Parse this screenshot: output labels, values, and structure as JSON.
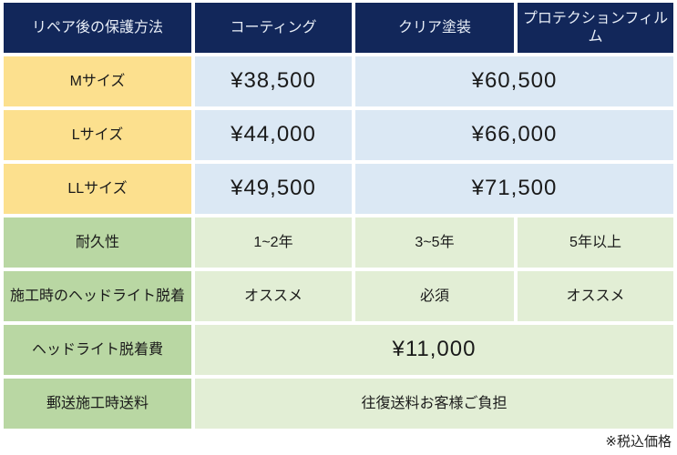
{
  "table": {
    "header": [
      "リペア後の保護方法",
      "コーティング",
      "クリア塗装",
      "プロテクションフィルム"
    ],
    "size_rows": [
      {
        "label": "Mサイズ",
        "coating_price": "¥38,500",
        "clear_film_price": "¥60,500"
      },
      {
        "label": "Lサイズ",
        "coating_price": "¥44,000",
        "clear_film_price": "¥66,000"
      },
      {
        "label": "LLサイズ",
        "coating_price": "¥49,500",
        "clear_film_price": "¥71,500"
      }
    ],
    "spec_rows": [
      {
        "label": "耐久性",
        "coating": "1~2年",
        "clear_paint": "3~5年",
        "protection_film": "5年以上"
      },
      {
        "label": "施工時のヘッドライト脱着",
        "coating": "オススメ",
        "clear_paint": "必須",
        "protection_film": "オススメ"
      }
    ],
    "full_rows": [
      {
        "label": "ヘッドライト脱着費",
        "value": "¥11,000"
      },
      {
        "label": "郵送施工時送料",
        "value": "往復送料お客様ご負担"
      }
    ],
    "footnote": "※税込価格"
  },
  "colors": {
    "header_bg": "#12275a",
    "header_text": "#e8eef7",
    "size_label_bg": "#fce08e",
    "price_bg": "#dbe8f4",
    "spec_label_bg": "#b9d7a3",
    "spec_value_bg": "#e2eed5",
    "body_text": "#1a1a1a",
    "gap": "#ffffff"
  }
}
